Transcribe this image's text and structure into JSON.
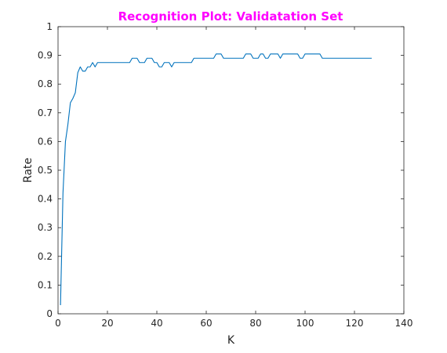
{
  "chart_data": {
    "type": "line",
    "title": "Recognition Plot: Validatation Set",
    "xlabel": "K",
    "ylabel": "Rate",
    "xlim": [
      0,
      140
    ],
    "ylim": [
      0,
      1
    ],
    "xticks": [
      0,
      20,
      40,
      60,
      80,
      100,
      120,
      140
    ],
    "yticks": [
      0,
      0.1,
      0.2,
      0.3,
      0.4,
      0.5,
      0.6,
      0.7,
      0.8,
      0.9,
      1
    ],
    "grid": false,
    "colors": {
      "title": "#ff00ff",
      "line": "#0072bd",
      "axis": "#262626"
    },
    "series": [
      {
        "x": [
          1,
          2,
          3,
          4,
          5,
          6,
          7,
          8,
          9,
          10,
          11,
          12,
          13,
          14,
          15,
          16,
          17,
          18,
          19,
          20,
          21,
          22,
          23,
          24,
          25,
          26,
          27,
          28,
          29,
          30,
          31,
          32,
          33,
          34,
          35,
          36,
          37,
          38,
          39,
          40,
          41,
          42,
          43,
          44,
          45,
          46,
          47,
          48,
          49,
          50,
          51,
          52,
          53,
          54,
          55,
          56,
          57,
          58,
          59,
          60,
          61,
          62,
          63,
          64,
          65,
          66,
          67,
          68,
          69,
          70,
          71,
          72,
          73,
          74,
          75,
          76,
          77,
          78,
          79,
          80,
          81,
          82,
          83,
          84,
          85,
          86,
          87,
          88,
          89,
          90,
          91,
          92,
          93,
          94,
          95,
          96,
          97,
          98,
          99,
          100,
          101,
          102,
          103,
          104,
          105,
          106,
          107,
          108,
          109,
          110,
          111,
          112,
          113,
          114,
          115,
          116,
          117,
          118,
          119,
          120,
          121,
          122,
          123,
          124,
          125,
          126,
          127
        ],
        "values": [
          0.03,
          0.42,
          0.6,
          0.66,
          0.735,
          0.75,
          0.77,
          0.84,
          0.86,
          0.845,
          0.845,
          0.86,
          0.86,
          0.875,
          0.86,
          0.875,
          0.875,
          0.875,
          0.875,
          0.875,
          0.875,
          0.875,
          0.875,
          0.875,
          0.875,
          0.875,
          0.875,
          0.875,
          0.875,
          0.89,
          0.89,
          0.89,
          0.875,
          0.875,
          0.875,
          0.89,
          0.89,
          0.89,
          0.875,
          0.875,
          0.86,
          0.86,
          0.875,
          0.875,
          0.875,
          0.86,
          0.875,
          0.875,
          0.875,
          0.875,
          0.875,
          0.875,
          0.875,
          0.875,
          0.89,
          0.89,
          0.89,
          0.89,
          0.89,
          0.89,
          0.89,
          0.89,
          0.89,
          0.905,
          0.905,
          0.905,
          0.89,
          0.89,
          0.89,
          0.89,
          0.89,
          0.89,
          0.89,
          0.89,
          0.89,
          0.905,
          0.905,
          0.905,
          0.89,
          0.89,
          0.89,
          0.905,
          0.905,
          0.89,
          0.89,
          0.905,
          0.905,
          0.905,
          0.905,
          0.89,
          0.905,
          0.905,
          0.905,
          0.905,
          0.905,
          0.905,
          0.905,
          0.89,
          0.89,
          0.905,
          0.905,
          0.905,
          0.905,
          0.905,
          0.905,
          0.905,
          0.89,
          0.89,
          0.89,
          0.89,
          0.89,
          0.89,
          0.89,
          0.89,
          0.89,
          0.89,
          0.89,
          0.89,
          0.89,
          0.89,
          0.89,
          0.89,
          0.89,
          0.89,
          0.89,
          0.89,
          0.89
        ]
      }
    ]
  }
}
